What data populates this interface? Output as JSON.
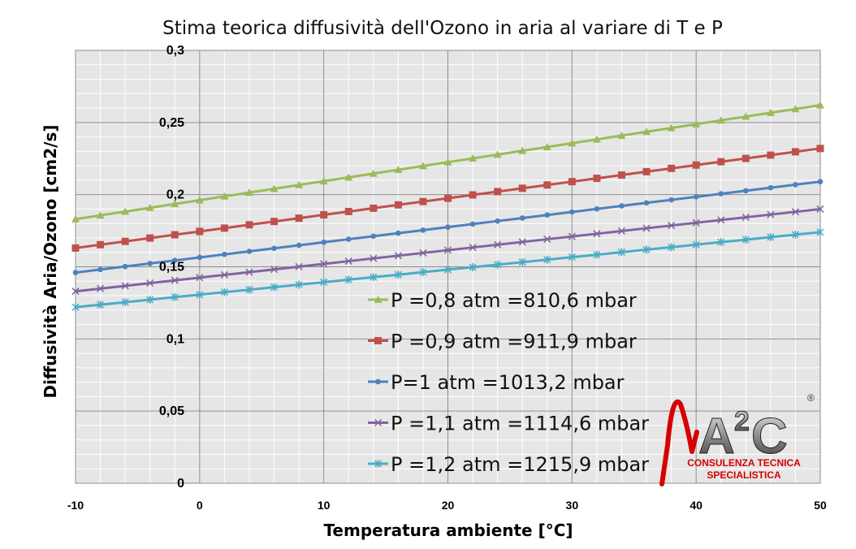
{
  "chart_data": {
    "type": "line",
    "title": "Stima teorica diffusività dell'Ozono in aria al variare di T e P",
    "xlabel": "Temperatura ambiente [°C]",
    "ylabel": "Diffusività Aria/Ozono [cm2/s]",
    "xlim": [
      -10,
      50
    ],
    "ylim": [
      0,
      0.3
    ],
    "x_ticks": [
      -10,
      0,
      10,
      20,
      30,
      40,
      50
    ],
    "x_tick_labels": [
      "-10",
      "0",
      "10",
      "20",
      "30",
      "40",
      "50"
    ],
    "y_ticks": [
      0,
      0.05,
      0.1,
      0.15,
      0.2,
      0.25,
      0.3
    ],
    "y_tick_labels": [
      "0",
      "0,05",
      "0,1",
      "0,15",
      "0,2",
      "0,25",
      "0,3"
    ],
    "grid": true,
    "legend_position": "lower-center",
    "x_step": 2,
    "series": [
      {
        "name": "P =0,8 atm =810,6 mbar",
        "color": "#9bbb59",
        "marker": "triangle",
        "x_start": -10,
        "x_end": 50,
        "y_start": 0.183,
        "y_end": 0.262
      },
      {
        "name": "P =0,9 atm =911,9 mbar",
        "color": "#c0504d",
        "marker": "square",
        "x_start": -10,
        "x_end": 50,
        "y_start": 0.163,
        "y_end": 0.232
      },
      {
        "name": "P=1 atm =1013,2 mbar",
        "color": "#4f81bd",
        "marker": "circle",
        "x_start": -10,
        "x_end": 50,
        "y_start": 0.146,
        "y_end": 0.209
      },
      {
        "name": "P =1,1 atm =1114,6 mbar",
        "color": "#8064a2",
        "marker": "x",
        "x_start": -10,
        "x_end": 50,
        "y_start": 0.133,
        "y_end": 0.19
      },
      {
        "name": "P =1,2 atm =1215,9 mbar",
        "color": "#4bacc6",
        "marker": "star",
        "x_start": -10,
        "x_end": 50,
        "y_start": 0.122,
        "y_end": 0.174
      }
    ]
  },
  "logo": {
    "mark": "A",
    "superscript": "2",
    "letter": "C",
    "registered": "®",
    "line1": "CONSULENZA TECNICA",
    "line2": "SPECIALISTICA",
    "accent_color": "#d60000"
  }
}
